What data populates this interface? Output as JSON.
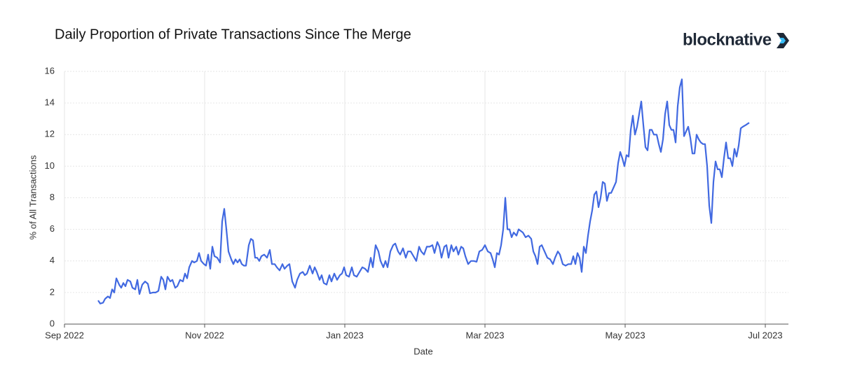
{
  "chart_data": {
    "type": "line",
    "title": "Daily Proportion of Private Transactions Since The Merge",
    "logo": "blocknative",
    "x_label": "Date",
    "y_label": "% of All Transactions",
    "grid": true,
    "xlim": [
      0,
      10.33
    ],
    "xticks": [
      {
        "value": 0,
        "label": "Sep 2022"
      },
      {
        "value": 2,
        "label": "Nov 2022"
      },
      {
        "value": 4,
        "label": "Jan 2023"
      },
      {
        "value": 6,
        "label": "Mar 2023"
      },
      {
        "value": 8,
        "label": "May 2023"
      },
      {
        "value": 10,
        "label": "Jul 2023"
      }
    ],
    "ylim": [
      0,
      16
    ],
    "yticks": [
      0,
      2,
      4,
      6,
      8,
      10,
      12,
      14,
      16
    ],
    "x": [
      0.48,
      0.51,
      0.55,
      0.58,
      0.62,
      0.65,
      0.68,
      0.71,
      0.74,
      0.78,
      0.81,
      0.84,
      0.87,
      0.9,
      0.94,
      0.97,
      1.01,
      1.04,
      1.07,
      1.11,
      1.15,
      1.19,
      1.22,
      1.26,
      1.3,
      1.34,
      1.38,
      1.41,
      1.44,
      1.47,
      1.51,
      1.54,
      1.58,
      1.61,
      1.65,
      1.69,
      1.72,
      1.75,
      1.78,
      1.82,
      1.85,
      1.89,
      1.92,
      1.95,
      1.99,
      2.02,
      2.05,
      2.08,
      2.11,
      2.14,
      2.18,
      2.22,
      2.25,
      2.28,
      2.31,
      2.34,
      2.38,
      2.41,
      2.44,
      2.47,
      2.5,
      2.53,
      2.56,
      2.59,
      2.63,
      2.66,
      2.69,
      2.72,
      2.75,
      2.78,
      2.81,
      2.85,
      2.89,
      2.93,
      2.96,
      3.0,
      3.03,
      3.07,
      3.11,
      3.14,
      3.18,
      3.21,
      3.25,
      3.29,
      3.32,
      3.36,
      3.4,
      3.43,
      3.46,
      3.5,
      3.54,
      3.57,
      3.6,
      3.64,
      3.67,
      3.7,
      3.74,
      3.78,
      3.81,
      3.85,
      3.89,
      3.93,
      3.96,
      3.99,
      4.02,
      4.06,
      4.1,
      4.13,
      4.17,
      4.21,
      4.25,
      4.29,
      4.33,
      4.37,
      4.4,
      4.44,
      4.48,
      4.51,
      4.55,
      4.58,
      4.61,
      4.65,
      4.69,
      4.72,
      4.76,
      4.79,
      4.83,
      4.87,
      4.9,
      4.94,
      4.98,
      5.02,
      5.06,
      5.09,
      5.13,
      5.17,
      5.21,
      5.25,
      5.28,
      5.32,
      5.35,
      5.38,
      5.42,
      5.45,
      5.48,
      5.52,
      5.55,
      5.59,
      5.62,
      5.66,
      5.69,
      5.72,
      5.76,
      5.8,
      5.84,
      5.88,
      5.92,
      5.96,
      6.0,
      6.04,
      6.08,
      6.11,
      6.14,
      6.17,
      6.2,
      6.23,
      6.26,
      6.29,
      6.32,
      6.35,
      6.38,
      6.41,
      6.45,
      6.48,
      6.51,
      6.54,
      6.58,
      6.62,
      6.66,
      6.69,
      6.72,
      6.75,
      6.78,
      6.81,
      6.85,
      6.89,
      6.93,
      6.97,
      7.0,
      7.04,
      7.07,
      7.11,
      7.15,
      7.19,
      7.23,
      7.26,
      7.29,
      7.32,
      7.35,
      7.38,
      7.41,
      7.44,
      7.47,
      7.5,
      7.53,
      7.56,
      7.59,
      7.62,
      7.65,
      7.68,
      7.71,
      7.74,
      7.77,
      7.8,
      7.83,
      7.87,
      7.9,
      7.93,
      7.96,
      7.99,
      8.02,
      8.05,
      8.08,
      8.11,
      8.14,
      8.17,
      8.2,
      8.23,
      8.26,
      8.29,
      8.32,
      8.35,
      8.38,
      8.41,
      8.45,
      8.48,
      8.51,
      8.54,
      8.57,
      8.6,
      8.63,
      8.66,
      8.69,
      8.72,
      8.75,
      8.78,
      8.81,
      8.84,
      8.87,
      8.9,
      8.93,
      8.96,
      8.99,
      9.02,
      9.05,
      9.08,
      9.11,
      9.14,
      9.17,
      9.2,
      9.23,
      9.26,
      9.29,
      9.32,
      9.35,
      9.38,
      9.41,
      9.44,
      9.47,
      9.5,
      9.53,
      9.56,
      9.59,
      9.62,
      9.65,
      9.68,
      9.72,
      9.77
    ],
    "values": [
      1.5,
      1.3,
      1.35,
      1.6,
      1.75,
      1.65,
      2.2,
      2.0,
      2.9,
      2.5,
      2.3,
      2.6,
      2.4,
      2.8,
      2.7,
      2.3,
      2.2,
      2.8,
      1.9,
      2.5,
      2.7,
      2.55,
      1.95,
      2.0,
      2.0,
      2.1,
      3.0,
      2.8,
      2.2,
      3.0,
      2.7,
      2.8,
      2.3,
      2.4,
      2.8,
      2.7,
      3.2,
      2.9,
      3.6,
      4.0,
      3.9,
      4.0,
      4.5,
      4.0,
      3.8,
      3.7,
      4.4,
      3.5,
      4.9,
      4.3,
      4.2,
      3.9,
      6.5,
      7.3,
      6.0,
      4.6,
      4.1,
      3.8,
      4.1,
      3.9,
      4.1,
      3.8,
      3.7,
      3.7,
      5.0,
      5.4,
      5.3,
      4.2,
      4.2,
      4.0,
      4.3,
      4.4,
      4.2,
      4.7,
      3.8,
      3.8,
      3.6,
      3.4,
      3.8,
      3.5,
      3.7,
      3.8,
      2.7,
      2.3,
      2.8,
      3.2,
      3.3,
      3.1,
      3.2,
      3.7,
      3.2,
      3.6,
      3.3,
      2.8,
      3.1,
      2.6,
      2.5,
      3.1,
      2.7,
      3.2,
      2.8,
      3.1,
      3.2,
      3.6,
      3.1,
      3.0,
      3.6,
      3.1,
      3.0,
      3.3,
      3.6,
      3.5,
      3.3,
      4.2,
      3.6,
      5.0,
      4.6,
      4.0,
      3.6,
      4.0,
      3.6,
      4.6,
      5.0,
      5.1,
      4.6,
      4.4,
      4.8,
      4.2,
      4.6,
      4.6,
      4.3,
      4.0,
      4.9,
      4.6,
      4.4,
      4.9,
      4.9,
      5.0,
      4.5,
      5.2,
      4.9,
      4.2,
      4.9,
      5.0,
      4.2,
      5.0,
      4.6,
      4.9,
      4.4,
      4.9,
      4.8,
      4.3,
      3.8,
      4.0,
      4.0,
      3.95,
      4.6,
      4.7,
      5.0,
      4.6,
      4.5,
      4.1,
      3.6,
      4.5,
      4.4,
      5.0,
      6.0,
      8.0,
      6.0,
      6.0,
      5.5,
      5.8,
      5.6,
      6.0,
      5.9,
      5.8,
      5.5,
      5.6,
      5.4,
      4.6,
      4.3,
      3.8,
      4.9,
      5.0,
      4.6,
      4.2,
      4.1,
      3.8,
      4.2,
      4.6,
      4.4,
      3.8,
      3.7,
      3.8,
      3.8,
      4.3,
      3.8,
      4.5,
      4.2,
      3.3,
      4.9,
      4.5,
      5.6,
      6.5,
      7.2,
      8.2,
      8.4,
      7.4,
      8.0,
      9.0,
      8.9,
      7.8,
      8.3,
      8.3,
      8.6,
      9.0,
      10.2,
      10.9,
      10.5,
      10.0,
      10.7,
      10.6,
      12.3,
      13.2,
      12.0,
      12.5,
      13.3,
      14.1,
      12.6,
      11.2,
      11.0,
      12.3,
      12.3,
      12.0,
      12.0,
      11.4,
      10.9,
      11.7,
      13.3,
      14.1,
      12.6,
      12.3,
      12.3,
      11.5,
      13.8,
      15.0,
      15.5,
      11.9,
      12.2,
      12.5,
      11.8,
      10.8,
      10.8,
      12.0,
      11.7,
      11.5,
      11.4,
      11.4,
      10.0,
      7.5,
      6.4,
      9.0,
      10.3,
      9.8,
      9.8,
      9.3,
      10.5,
      11.5,
      10.5,
      10.5,
      10.0,
      11.1,
      10.6,
      11.3,
      12.4,
      12.5,
      12.6,
      12.75
    ],
    "color": "#4169e1"
  }
}
